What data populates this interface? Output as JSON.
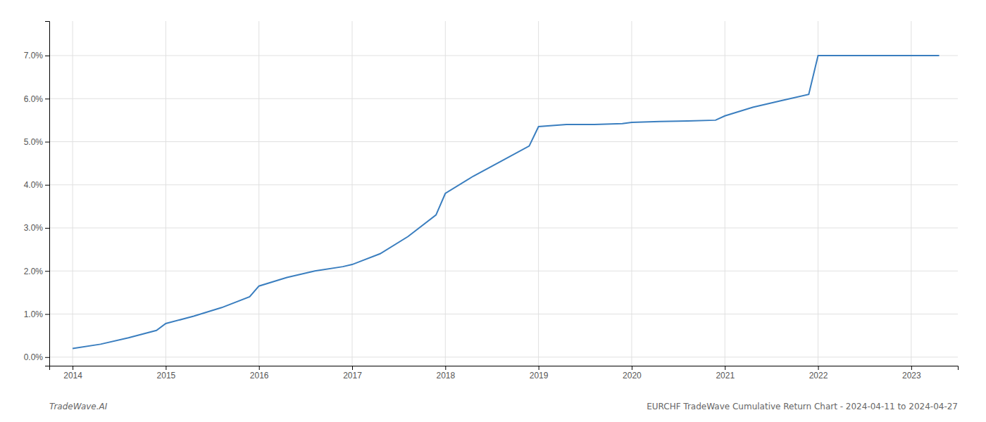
{
  "chart_data": {
    "type": "line",
    "x": [
      2014.0,
      2014.3,
      2014.6,
      2014.9,
      2015.0,
      2015.3,
      2015.6,
      2015.9,
      2016.0,
      2016.3,
      2016.6,
      2016.9,
      2017.0,
      2017.3,
      2017.6,
      2017.9,
      2018.0,
      2018.3,
      2018.6,
      2018.9,
      2019.0,
      2019.3,
      2019.6,
      2019.9,
      2020.0,
      2020.3,
      2020.6,
      2020.9,
      2021.0,
      2021.3,
      2021.6,
      2021.9,
      2022.0,
      2022.3,
      2022.6,
      2022.9,
      2023.0,
      2023.3
    ],
    "values": [
      0.002,
      0.003,
      0.0045,
      0.0062,
      0.0078,
      0.0095,
      0.0115,
      0.014,
      0.0165,
      0.0185,
      0.02,
      0.021,
      0.0215,
      0.024,
      0.028,
      0.033,
      0.038,
      0.042,
      0.0455,
      0.049,
      0.0535,
      0.054,
      0.054,
      0.0542,
      0.0545,
      0.0547,
      0.0548,
      0.055,
      0.056,
      0.058,
      0.0595,
      0.061,
      0.07,
      0.07,
      0.07,
      0.07,
      0.07,
      0.07
    ],
    "color": "#3a7ebf",
    "xlim": [
      2013.75,
      2023.5
    ],
    "ylim": [
      -0.002,
      0.078
    ],
    "xticks": [
      2014,
      2015,
      2016,
      2017,
      2018,
      2019,
      2020,
      2021,
      2022,
      2023
    ],
    "yticks": [
      {
        "value": 0.0,
        "label": "0.0%"
      },
      {
        "value": 0.01,
        "label": "1.0%"
      },
      {
        "value": 0.02,
        "label": "2.0%"
      },
      {
        "value": 0.03,
        "label": "3.0%"
      },
      {
        "value": 0.04,
        "label": "4.0%"
      },
      {
        "value": 0.05,
        "label": "5.0%"
      },
      {
        "value": 0.06,
        "label": "6.0%"
      },
      {
        "value": 0.07,
        "label": "7.0%"
      }
    ],
    "grid": true,
    "annotations": [
      "TradeWave.AI",
      "EURCHF TradeWave Cumulative Return Chart - 2024-04-11 to 2024-04-27"
    ]
  }
}
